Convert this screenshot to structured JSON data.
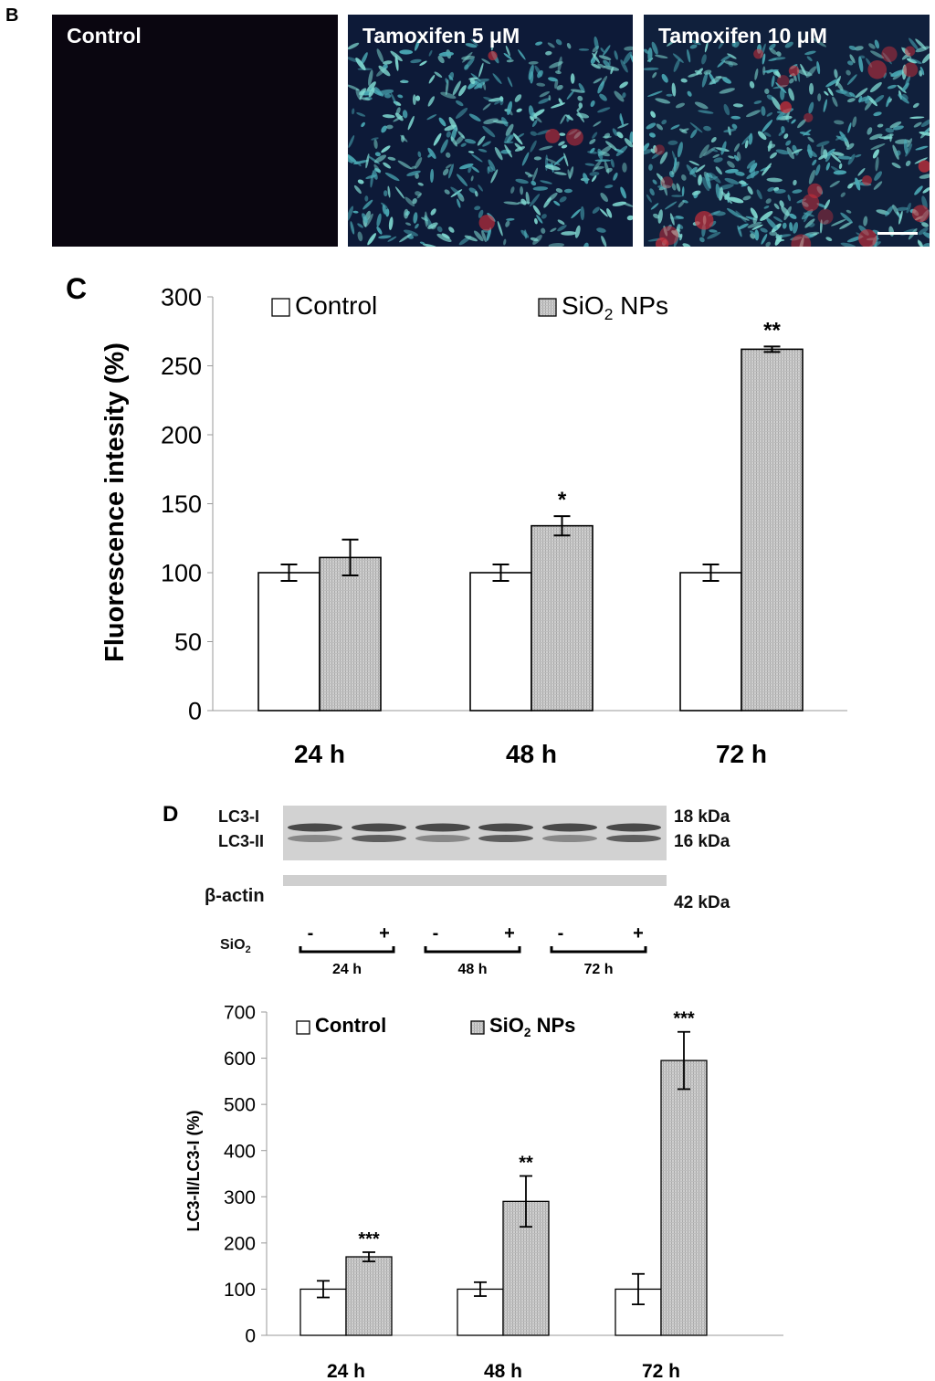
{
  "panel_b": {
    "letter": "B",
    "images": [
      {
        "label": "Control",
        "tone": "dark"
      },
      {
        "label": "Tamoxifen 5 μM",
        "tone": "cells-low"
      },
      {
        "label": "Tamoxifen 10 μM",
        "tone": "cells-high"
      }
    ]
  },
  "panel_c": {
    "letter": "C"
  },
  "panel_d": {
    "letter": "D",
    "blot": {
      "bands_left": [
        "LC3-I",
        "LC3-II",
        "β-actin"
      ],
      "bands_right": [
        "18 kDa",
        "16 kDa",
        "42 kDa"
      ],
      "treatment_label": "SiO",
      "treatment_sub": "2",
      "signs": [
        "-",
        "+",
        "-",
        "+",
        "-",
        "+"
      ],
      "groups": [
        "24 h",
        "48 h",
        "72 h"
      ]
    }
  },
  "chart_data": [
    {
      "type": "bar",
      "categories": [
        "24 h",
        "48 h",
        "72 h"
      ],
      "series": [
        {
          "name": "Control",
          "values": [
            100,
            100,
            100
          ],
          "errors": [
            6,
            6,
            6
          ],
          "fill": "#ffffff"
        },
        {
          "name": "SiO2 NPs",
          "values": [
            111,
            134,
            262
          ],
          "errors": [
            13,
            7,
            2
          ],
          "fill": "#c8c8c8"
        }
      ],
      "legend": [
        {
          "text": "Control",
          "sub": ""
        },
        {
          "text": "SiO",
          "sub": "2",
          "suffix": " NPs"
        }
      ],
      "significance": [
        "",
        "*",
        "**"
      ],
      "title": "",
      "xlabel": "",
      "ylabel": "Fluorescence intesity (%)",
      "ylim": [
        0,
        300
      ],
      "yticks": [
        0,
        50,
        100,
        150,
        200,
        250,
        300
      ],
      "grid": false,
      "legend_placement": "top"
    },
    {
      "type": "bar",
      "categories": [
        "24 h",
        "48 h",
        "72 h"
      ],
      "series": [
        {
          "name": "Control",
          "values": [
            100,
            100,
            100
          ],
          "errors": [
            18,
            15,
            33
          ],
          "fill": "#ffffff"
        },
        {
          "name": "SiO2 NPs",
          "values": [
            170,
            290,
            595
          ],
          "errors": [
            10,
            55,
            62
          ],
          "fill": "#c8c8c8"
        }
      ],
      "legend": [
        {
          "text": "Control",
          "sub": ""
        },
        {
          "text": "SiO",
          "sub": "2",
          "suffix": " NPs"
        }
      ],
      "significance": [
        "***",
        "**",
        "***"
      ],
      "title": "",
      "xlabel": "",
      "ylabel": "LC3-II/LC3-I (%)",
      "ylim": [
        0,
        700
      ],
      "yticks": [
        0,
        100,
        200,
        300,
        400,
        500,
        600,
        700
      ],
      "grid": false,
      "legend_placement": "top"
    }
  ]
}
